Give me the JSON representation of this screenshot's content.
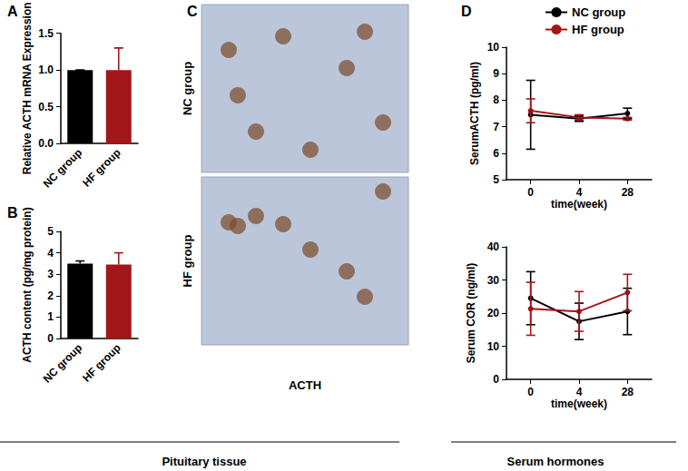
{
  "chart_data": [
    {
      "panel": "A",
      "type": "bar",
      "categories": [
        "NC group",
        "HF group"
      ],
      "values": [
        1.0,
        1.0
      ],
      "errors": [
        0,
        0.3
      ],
      "colors": [
        "#000000",
        "#a3161a"
      ],
      "ylabel": "Relative ACTH mRNA Expression",
      "ylim": [
        0,
        1.5
      ],
      "yticks": [
        {
          "value": 0,
          "label": "0.0"
        },
        0.5,
        {
          "value": 1,
          "label": "1.0"
        },
        1.5
      ]
    },
    {
      "panel": "B",
      "type": "bar",
      "categories": [
        "NC group",
        "HF group"
      ],
      "values": [
        3.5,
        3.45
      ],
      "errors": [
        0.12,
        0.55
      ],
      "colors": [
        "#000000",
        "#a3161a"
      ],
      "ylabel": "ACTH content (pg/mg protein)",
      "ylim": [
        0,
        5
      ],
      "yticks": [
        0,
        1,
        2,
        3,
        4,
        5
      ]
    },
    {
      "panel": "D",
      "type": "line",
      "categories": [
        "0",
        "4",
        "28"
      ],
      "xlabel": "time(week)",
      "ylabel": "SerumACTH (pg/ml)",
      "ylim": [
        5,
        10
      ],
      "yticks": [
        5,
        6,
        7,
        8,
        9,
        10
      ],
      "legend": "top",
      "marker": "circle",
      "series": [
        {
          "name": "NC group",
          "color": "#000000",
          "values": [
            7.45,
            7.3,
            7.5
          ],
          "errors": [
            1.3,
            0.1,
            0.2
          ]
        },
        {
          "name": "HF group",
          "color": "#a3161a",
          "values": [
            7.6,
            7.35,
            7.3
          ],
          "errors": [
            0.45,
            0.1,
            0.05
          ]
        }
      ]
    },
    {
      "type": "line",
      "categories": [
        "0",
        "4",
        "28"
      ],
      "xlabel": "time(week)",
      "ylabel": "Serum COR (ng/ml)",
      "ylim": [
        0,
        40
      ],
      "yticks": [
        0,
        10,
        20,
        30,
        40
      ],
      "marker": "circle",
      "series": [
        {
          "name": "NC group",
          "color": "#000000",
          "values": [
            24.5,
            17.5,
            20.5
          ],
          "errors": [
            8,
            5.5,
            7
          ]
        },
        {
          "name": "HF group",
          "color": "#a3161a",
          "values": [
            21.3,
            20.5,
            26.2
          ],
          "errors": [
            8,
            6,
            5.5
          ]
        }
      ]
    }
  ],
  "image_panel": {
    "panel": "C",
    "row_labels": [
      "NC group",
      "HF group"
    ],
    "caption": "ACTH"
  },
  "sections": [
    "Pituitary tissue",
    "Serum hormones"
  ]
}
